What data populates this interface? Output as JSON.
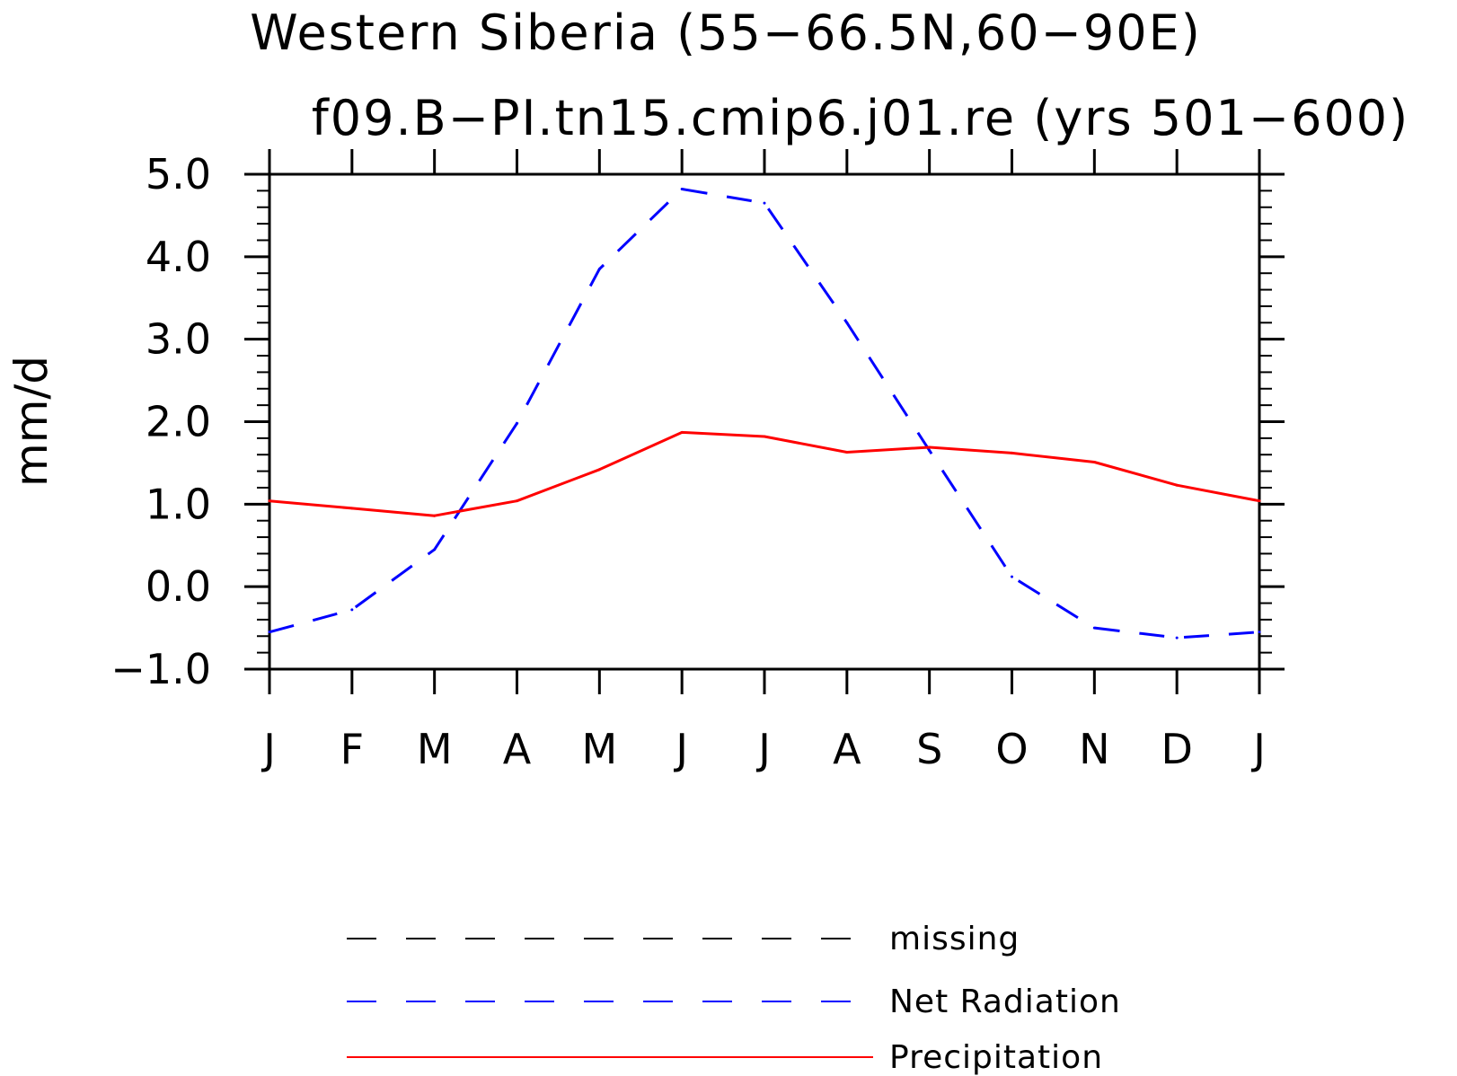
{
  "chart_data": {
    "type": "line",
    "title": "Western Siberia (55−66.5N,60−90E)",
    "subtitle": "f09.B−PI.tn15.cmip6.j01.re (yrs 501−600)",
    "xlabel": "",
    "ylabel": "mm/d",
    "x_ticks": [
      "J",
      "F",
      "M",
      "A",
      "M",
      "J",
      "J",
      "A",
      "S",
      "O",
      "N",
      "D",
      "J"
    ],
    "y_ticks": [
      "5.0",
      "4.0",
      "3.0",
      "2.0",
      "1.0",
      "0.0",
      "−1.0"
    ],
    "y_tick_values": [
      5,
      4,
      3,
      2,
      1,
      0,
      -1
    ],
    "ylim": [
      -1,
      5
    ],
    "xlim": [
      0,
      12
    ],
    "grid": false,
    "legend_position": "bottom",
    "series": [
      {
        "name": "missing",
        "color": "#000000",
        "style": "dashed",
        "values": []
      },
      {
        "name": "Net Radiation",
        "color": "#0000ff",
        "style": "dashed",
        "values": [
          -0.55,
          -0.28,
          0.45,
          1.98,
          3.85,
          4.82,
          4.65,
          3.2,
          1.65,
          0.12,
          -0.5,
          -0.62,
          -0.55
        ]
      },
      {
        "name": "Precipitation",
        "color": "#ff0000",
        "style": "solid",
        "values": [
          1.04,
          0.95,
          0.86,
          1.04,
          1.42,
          1.87,
          1.82,
          1.63,
          1.69,
          1.62,
          1.51,
          1.23,
          1.04
        ]
      }
    ]
  }
}
